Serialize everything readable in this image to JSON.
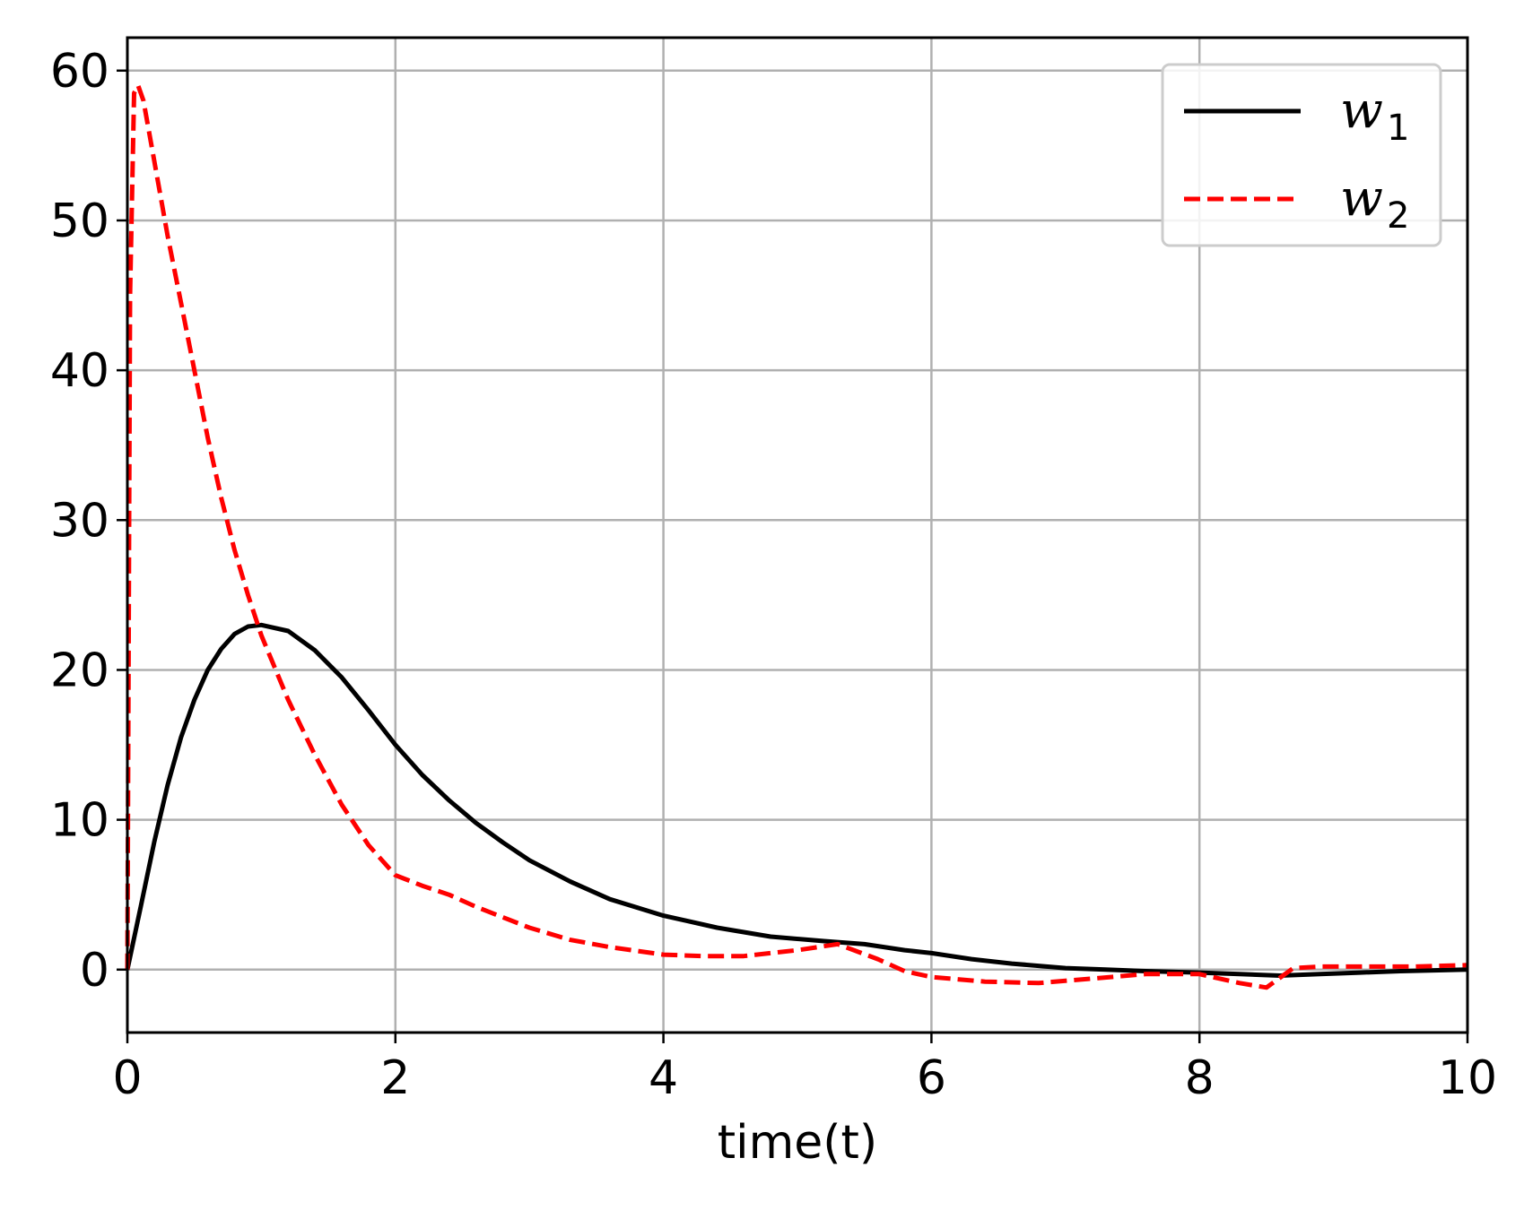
{
  "chart_data": {
    "type": "line",
    "title": "",
    "xlabel": "time(t)",
    "ylabel": "",
    "xlim": [
      0,
      10
    ],
    "ylim": [
      -4.2,
      62.2
    ],
    "xticks": [
      0,
      2,
      4,
      6,
      8,
      10
    ],
    "yticks": [
      0,
      10,
      20,
      30,
      40,
      50,
      60
    ],
    "xtick_labels": [
      "0",
      "2",
      "4",
      "6",
      "8",
      "10"
    ],
    "ytick_labels": [
      "0",
      "10",
      "20",
      "30",
      "40",
      "50",
      "60"
    ],
    "grid": true,
    "legend_position": "top-right",
    "series": [
      {
        "name": "w",
        "name_subscript": "1",
        "color": "#000000",
        "style": "solid",
        "x": [
          0,
          0.1,
          0.2,
          0.3,
          0.4,
          0.5,
          0.6,
          0.7,
          0.8,
          0.9,
          1.0,
          1.2,
          1.4,
          1.6,
          1.8,
          2.0,
          2.2,
          2.4,
          2.6,
          2.8,
          3.0,
          3.3,
          3.6,
          4.0,
          4.4,
          4.8,
          5.2,
          5.5,
          5.8,
          6.0,
          6.3,
          6.6,
          7.0,
          7.3,
          7.6,
          8.0,
          8.3,
          8.6,
          8.9,
          9.2,
          9.5,
          10.0
        ],
        "y": [
          0,
          4.2,
          8.5,
          12.3,
          15.5,
          18.0,
          20.0,
          21.4,
          22.4,
          22.9,
          23.0,
          22.6,
          21.3,
          19.5,
          17.3,
          15.0,
          13.0,
          11.3,
          9.8,
          8.5,
          7.3,
          5.9,
          4.7,
          3.6,
          2.8,
          2.2,
          1.9,
          1.7,
          1.3,
          1.1,
          0.7,
          0.4,
          0.1,
          0.0,
          -0.1,
          -0.2,
          -0.3,
          -0.4,
          -0.3,
          -0.2,
          -0.1,
          0.0
        ]
      },
      {
        "name": "w",
        "name_subscript": "2",
        "color": "#ff0000",
        "style": "dashed",
        "x": [
          0,
          0.02,
          0.05,
          0.08,
          0.12,
          0.2,
          0.3,
          0.4,
          0.5,
          0.6,
          0.7,
          0.8,
          0.9,
          1.0,
          1.2,
          1.4,
          1.6,
          1.8,
          2.0,
          2.2,
          2.4,
          2.6,
          2.8,
          3.0,
          3.3,
          3.6,
          4.0,
          4.3,
          4.6,
          5.0,
          5.3,
          5.6,
          5.8,
          6.0,
          6.4,
          6.8,
          7.2,
          7.6,
          8.0,
          8.3,
          8.5,
          8.7,
          8.9,
          9.2,
          9.6,
          10.0
        ],
        "y": [
          0,
          45.0,
          58.5,
          59.0,
          58.0,
          54.0,
          49.0,
          44.5,
          40.0,
          35.5,
          31.5,
          28.0,
          25.0,
          22.3,
          18.0,
          14.3,
          11.0,
          8.3,
          6.3,
          5.6,
          5.0,
          4.2,
          3.5,
          2.8,
          2.0,
          1.5,
          1.0,
          0.9,
          0.9,
          1.3,
          1.7,
          0.7,
          -0.1,
          -0.5,
          -0.8,
          -0.9,
          -0.6,
          -0.3,
          -0.3,
          -0.9,
          -1.2,
          0.1,
          0.2,
          0.2,
          0.2,
          0.3
        ]
      }
    ]
  }
}
